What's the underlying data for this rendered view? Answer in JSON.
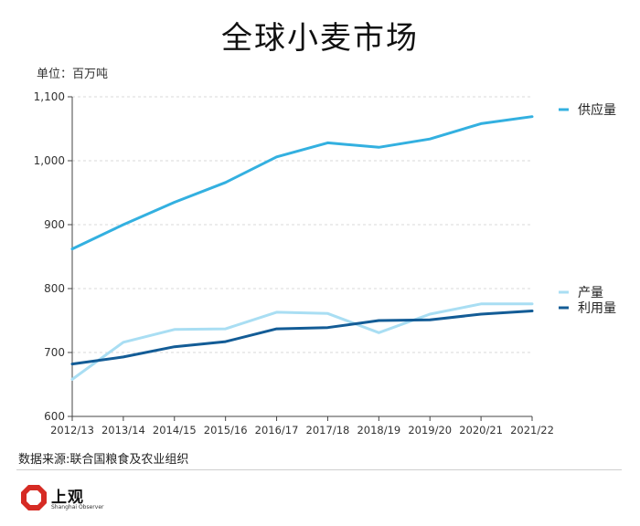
{
  "page": {
    "unit_label": "单位：百万吨",
    "source": "数据来源:联合国粮食及农业组织",
    "logo_text": "上观",
    "logo_sub": "Shanghai Observer"
  },
  "chart_data": {
    "type": "line",
    "title": "全球小麦市场",
    "xlabel": "",
    "ylabel": "",
    "categories": [
      "2012/13",
      "2013/14",
      "2014/15",
      "2015/16",
      "2016/17",
      "2017/18",
      "2018/19",
      "2019/20",
      "2020/21",
      "2021/22"
    ],
    "ylim": [
      600,
      1100
    ],
    "yticks": [
      600,
      700,
      800,
      900,
      1000,
      1100
    ],
    "ytick_labels": [
      "600",
      "700",
      "800",
      "900",
      "1,000",
      "1,100"
    ],
    "grid": "horizontal dashed",
    "legend": "right, at line ends",
    "series": [
      {
        "name": "供应量",
        "color": "#33b0e0",
        "values": [
          862,
          900,
          935,
          966,
          1006,
          1028,
          1021,
          1034,
          1058,
          1069
        ]
      },
      {
        "name": "产量",
        "color": "#a9def3",
        "values": [
          658,
          716,
          736,
          737,
          763,
          761,
          731,
          760,
          776,
          776
        ]
      },
      {
        "name": "利用量",
        "color": "#135c96",
        "values": [
          682,
          693,
          709,
          717,
          737,
          739,
          750,
          751,
          760,
          765
        ]
      }
    ]
  }
}
